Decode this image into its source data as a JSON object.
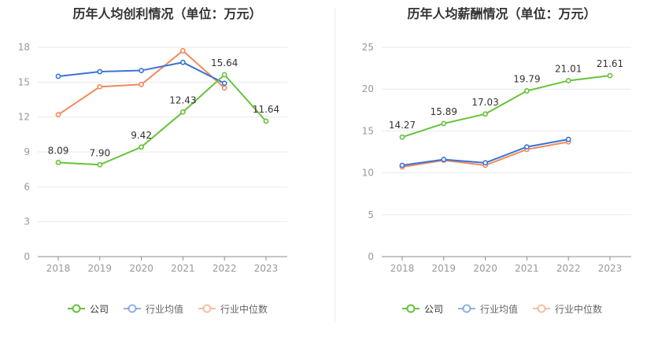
{
  "chart_data": [
    {
      "type": "line",
      "title": "历年人均创利情况（单位：万元）",
      "categories": [
        "2018",
        "2019",
        "2020",
        "2021",
        "2022",
        "2023"
      ],
      "ylim": [
        0,
        18
      ],
      "yticks": [
        0,
        3,
        6,
        9,
        12,
        15,
        18
      ],
      "grid": true,
      "legend_position": "bottom",
      "series": [
        {
          "name": "公司",
          "color": "#67c23a",
          "values": [
            8.09,
            7.9,
            9.42,
            12.43,
            15.64,
            11.64
          ],
          "labels": [
            "8.09",
            "7.90",
            "9.42",
            "12.43",
            "15.64",
            "11.64"
          ]
        },
        {
          "name": "行业均值",
          "color": "#3b73d6",
          "values": [
            15.5,
            15.9,
            16.0,
            16.7,
            14.9,
            null
          ]
        },
        {
          "name": "行业中位数",
          "color": "#f08a5d",
          "values": [
            12.2,
            14.6,
            14.8,
            17.7,
            14.5,
            null
          ]
        }
      ]
    },
    {
      "type": "line",
      "title": "历年人均薪酬情况（单位：万元）",
      "categories": [
        "2018",
        "2019",
        "2020",
        "2021",
        "2022",
        "2023"
      ],
      "ylim": [
        0,
        25
      ],
      "yticks": [
        0,
        5,
        10,
        15,
        20,
        25
      ],
      "grid": true,
      "legend_position": "bottom",
      "series": [
        {
          "name": "公司",
          "color": "#67c23a",
          "values": [
            14.27,
            15.89,
            17.03,
            19.79,
            21.01,
            21.61
          ],
          "labels": [
            "14.27",
            "15.89",
            "17.03",
            "19.79",
            "21.01",
            "21.61"
          ]
        },
        {
          "name": "行业均值",
          "color": "#3b73d6",
          "values": [
            10.9,
            11.6,
            11.2,
            13.1,
            14.0,
            null
          ]
        },
        {
          "name": "行业中位数",
          "color": "#f08a5d",
          "values": [
            10.7,
            11.5,
            10.9,
            12.8,
            13.7,
            null
          ]
        }
      ]
    }
  ]
}
